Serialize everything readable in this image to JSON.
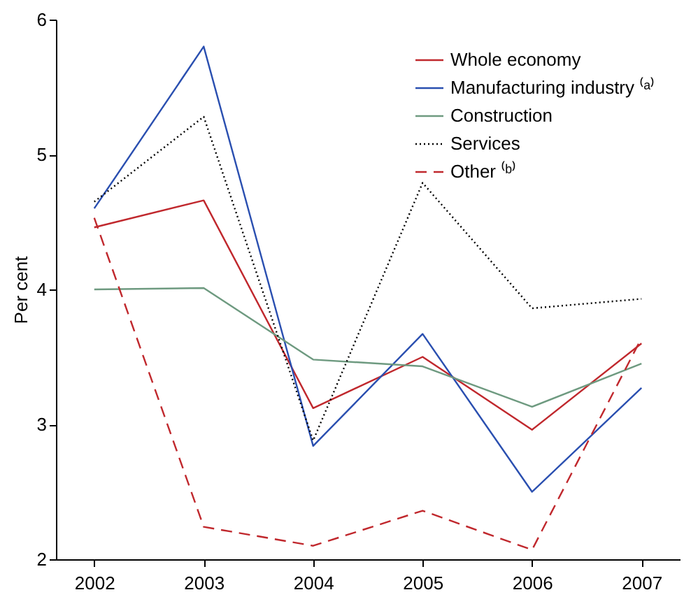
{
  "chart_data": {
    "type": "line",
    "ylabel": "Per cent",
    "categories": [
      "2002",
      "2003",
      "2004",
      "2005",
      "2006",
      "2007"
    ],
    "series": [
      {
        "name": "Whole economy",
        "color": "#c0282d",
        "line_style": "solid",
        "values": [
          4.46,
          4.66,
          3.12,
          3.5,
          2.96,
          3.6
        ]
      },
      {
        "name": "Manufacturing industry ⁽ᵃ⁾",
        "color": "#2a4fb0",
        "line_style": "solid",
        "values": [
          4.6,
          5.8,
          2.84,
          3.67,
          2.5,
          3.27
        ]
      },
      {
        "name": "Construction",
        "color": "#6e9a80",
        "line_style": "solid",
        "values": [
          4.0,
          4.01,
          3.48,
          3.43,
          3.13,
          3.45
        ]
      },
      {
        "name": "Services",
        "color": "#000000",
        "line_style": "dotted",
        "values": [
          4.65,
          5.28,
          2.88,
          4.79,
          3.86,
          3.93
        ]
      },
      {
        "name": "Other ⁽ᵇ⁾",
        "color": "#c0282d",
        "line_style": "dashed",
        "values": [
          4.53,
          2.24,
          2.1,
          2.36,
          2.07,
          3.64
        ]
      }
    ],
    "ylim": [
      2,
      6
    ],
    "yticks": [
      2,
      3,
      4,
      5,
      6
    ],
    "grid": false,
    "legend": "top right",
    "marker": "none"
  }
}
